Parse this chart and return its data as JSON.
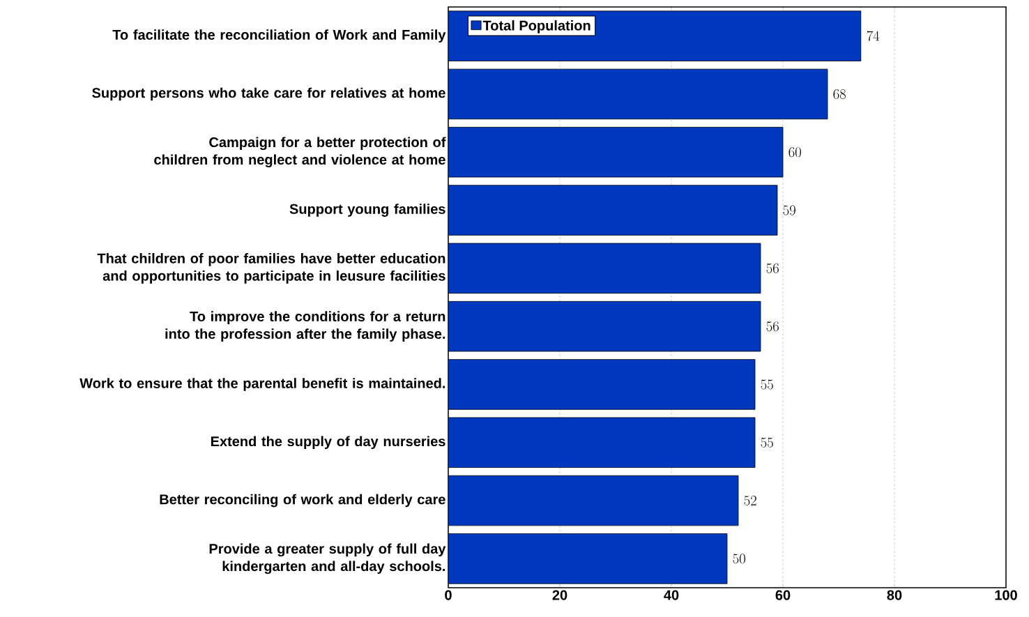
{
  "chart_data": {
    "type": "bar",
    "orientation": "horizontal",
    "categories": [
      "To facilitate the reconciliation of Work and Family",
      "Support persons who take care for relatives at home",
      "Campaign for a better protection of children from neglect and violence at home",
      "Support young families",
      "That children of poor families have better education and opportunities to participate in leusure facilities",
      "To improve the conditions for a return into the profession after the family phase.",
      "Work to ensure that the parental benefit is maintained.",
      "Extend the supply of day nurseries",
      "Better reconciling of work and elderly care",
      "Provide a greater supply of full day kindergarten and all-day schools."
    ],
    "series": [
      {
        "name": "Total Population",
        "color": "#0038c0",
        "values": [
          74,
          68,
          60,
          59,
          56,
          56,
          55,
          55,
          52,
          50
        ]
      }
    ],
    "xlim": [
      0,
      100
    ],
    "xticks": [
      0,
      20,
      40,
      60,
      80,
      100
    ],
    "grid": "x",
    "legend": "top left",
    "data_labels": true
  }
}
